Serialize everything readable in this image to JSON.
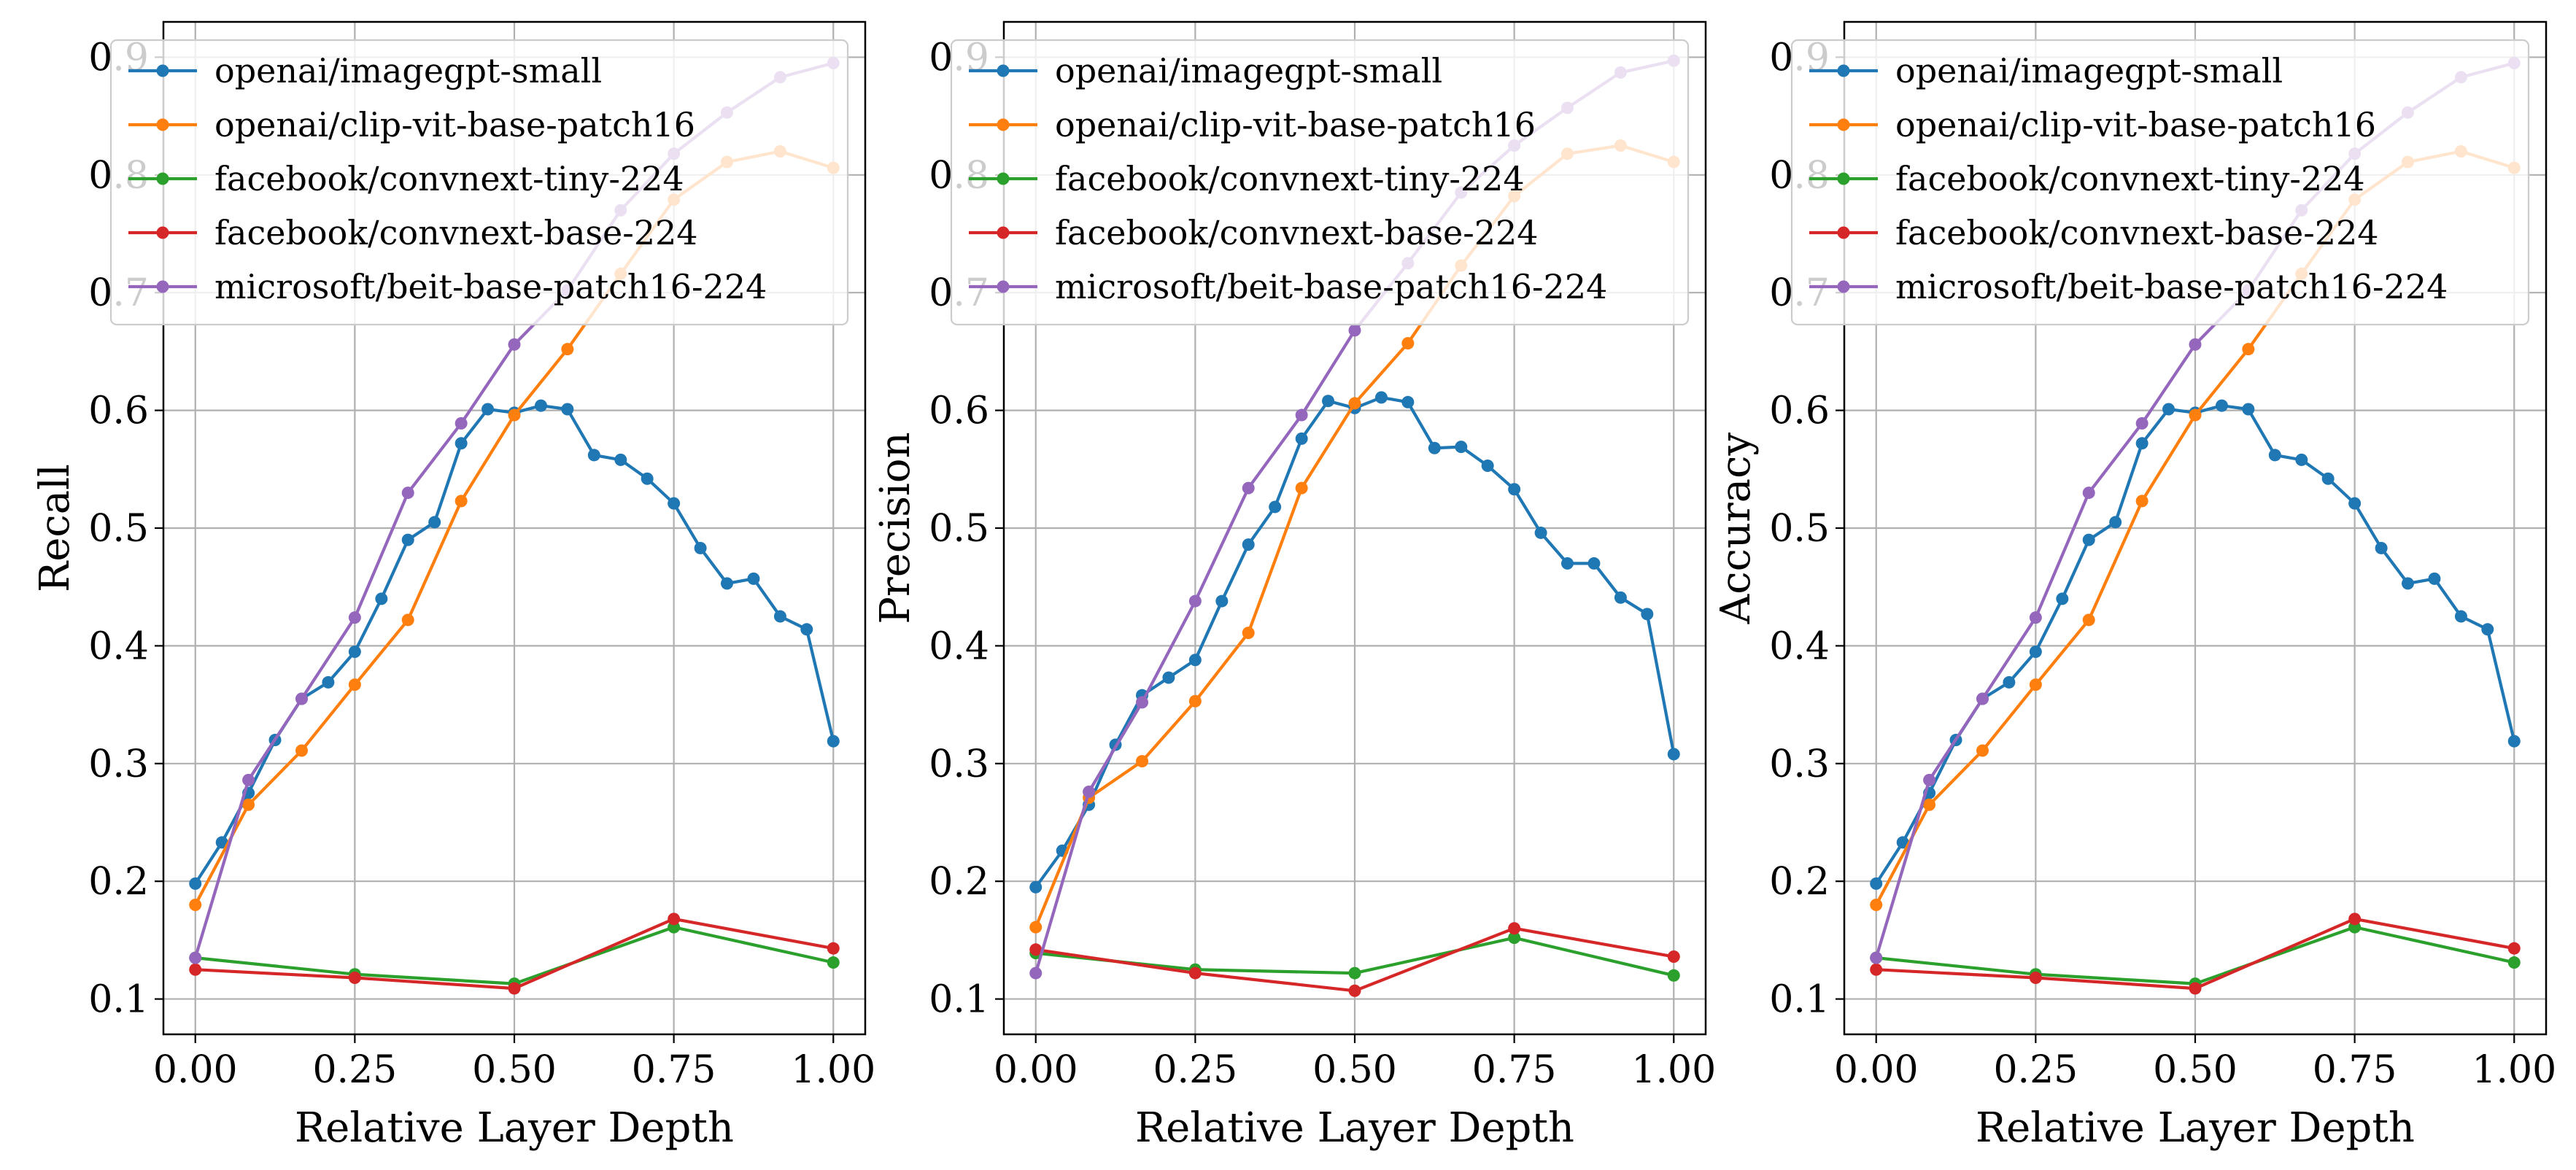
{
  "chart_data": [
    {
      "type": "line",
      "xlabel": "Relative Layer Depth",
      "ylabel": "Recall",
      "xlim": [
        -0.05,
        1.05
      ],
      "ylim": [
        0.07,
        0.93
      ],
      "xticks": [
        0.0,
        0.25,
        0.5,
        0.75,
        1.0
      ],
      "xtick_labels": [
        "0.00",
        "0.25",
        "0.50",
        "0.75",
        "1.00"
      ],
      "yticks": [
        0.1,
        0.2,
        0.3,
        0.4,
        0.5,
        0.6,
        0.7,
        0.8,
        0.9
      ],
      "ytick_labels": [
        "0.1",
        "0.2",
        "0.3",
        "0.4",
        "0.5",
        "0.6",
        "0.7",
        "0.8",
        "0.9"
      ],
      "grid": true,
      "legend_position": "upper-left",
      "series": [
        {
          "name": "openai/imagegpt-small",
          "color": "#1f77b4",
          "x": [
            0.0,
            0.0417,
            0.0833,
            0.125,
            0.1667,
            0.2083,
            0.25,
            0.2917,
            0.3333,
            0.375,
            0.4167,
            0.4583,
            0.5,
            0.5417,
            0.5833,
            0.625,
            0.6667,
            0.7083,
            0.75,
            0.7917,
            0.8333,
            0.875,
            0.9167,
            0.9583,
            1.0
          ],
          "y": [
            0.198,
            0.233,
            0.275,
            0.32,
            0.355,
            0.369,
            0.395,
            0.44,
            0.49,
            0.505,
            0.572,
            0.601,
            0.598,
            0.604,
            0.601,
            0.562,
            0.558,
            0.542,
            0.521,
            0.483,
            0.453,
            0.457,
            0.425,
            0.414,
            0.319
          ]
        },
        {
          "name": "openai/clip-vit-base-patch16",
          "color": "#ff7f0e",
          "x": [
            0.0,
            0.0833,
            0.1667,
            0.25,
            0.3333,
            0.4167,
            0.5,
            0.5833,
            0.6667,
            0.75,
            0.8333,
            0.9167,
            1.0
          ],
          "y": [
            0.18,
            0.265,
            0.311,
            0.367,
            0.422,
            0.523,
            0.596,
            0.652,
            0.716,
            0.779,
            0.811,
            0.82,
            0.806
          ]
        },
        {
          "name": "facebook/convnext-tiny-224",
          "color": "#2ca02c",
          "x": [
            0.0,
            0.25,
            0.5,
            0.75,
            1.0
          ],
          "y": [
            0.135,
            0.121,
            0.113,
            0.161,
            0.131
          ]
        },
        {
          "name": "facebook/convnext-base-224",
          "color": "#d62728",
          "x": [
            0.0,
            0.25,
            0.5,
            0.75,
            1.0
          ],
          "y": [
            0.125,
            0.118,
            0.109,
            0.168,
            0.143
          ]
        },
        {
          "name": "microsoft/beit-base-patch16-224",
          "color": "#9467bd",
          "x": [
            0.0,
            0.0833,
            0.1667,
            0.25,
            0.3333,
            0.4167,
            0.5,
            0.5833,
            0.6667,
            0.75,
            0.8333,
            0.9167,
            1.0
          ],
          "y": [
            0.135,
            0.286,
            0.355,
            0.424,
            0.53,
            0.589,
            0.656,
            0.702,
            0.77,
            0.818,
            0.853,
            0.883,
            0.895
          ]
        }
      ]
    },
    {
      "type": "line",
      "xlabel": "Relative Layer Depth",
      "ylabel": "Precision",
      "xlim": [
        -0.05,
        1.05
      ],
      "ylim": [
        0.07,
        0.93
      ],
      "xticks": [
        0.0,
        0.25,
        0.5,
        0.75,
        1.0
      ],
      "xtick_labels": [
        "0.00",
        "0.25",
        "0.50",
        "0.75",
        "1.00"
      ],
      "yticks": [
        0.1,
        0.2,
        0.3,
        0.4,
        0.5,
        0.6,
        0.7,
        0.8,
        0.9
      ],
      "ytick_labels": [
        "0.1",
        "0.2",
        "0.3",
        "0.4",
        "0.5",
        "0.6",
        "0.7",
        "0.8",
        "0.9"
      ],
      "grid": true,
      "legend_position": "upper-left",
      "series": [
        {
          "name": "openai/imagegpt-small",
          "color": "#1f77b4",
          "x": [
            0.0,
            0.0417,
            0.0833,
            0.125,
            0.1667,
            0.2083,
            0.25,
            0.2917,
            0.3333,
            0.375,
            0.4167,
            0.4583,
            0.5,
            0.5417,
            0.5833,
            0.625,
            0.6667,
            0.7083,
            0.75,
            0.7917,
            0.8333,
            0.875,
            0.9167,
            0.9583,
            1.0
          ],
          "y": [
            0.195,
            0.226,
            0.265,
            0.316,
            0.358,
            0.373,
            0.388,
            0.438,
            0.486,
            0.518,
            0.576,
            0.608,
            0.602,
            0.611,
            0.607,
            0.568,
            0.569,
            0.553,
            0.533,
            0.496,
            0.47,
            0.47,
            0.441,
            0.427,
            0.308
          ]
        },
        {
          "name": "openai/clip-vit-base-patch16",
          "color": "#ff7f0e",
          "x": [
            0.0,
            0.0833,
            0.1667,
            0.25,
            0.3333,
            0.4167,
            0.5,
            0.5833,
            0.6667,
            0.75,
            0.8333,
            0.9167,
            1.0
          ],
          "y": [
            0.161,
            0.271,
            0.302,
            0.353,
            0.411,
            0.534,
            0.606,
            0.657,
            0.723,
            0.782,
            0.818,
            0.825,
            0.811
          ]
        },
        {
          "name": "facebook/convnext-tiny-224",
          "color": "#2ca02c",
          "x": [
            0.0,
            0.25,
            0.5,
            0.75,
            1.0
          ],
          "y": [
            0.139,
            0.125,
            0.122,
            0.152,
            0.12
          ]
        },
        {
          "name": "facebook/convnext-base-224",
          "color": "#d62728",
          "x": [
            0.0,
            0.25,
            0.5,
            0.75,
            1.0
          ],
          "y": [
            0.142,
            0.122,
            0.107,
            0.16,
            0.136
          ]
        },
        {
          "name": "microsoft/beit-base-patch16-224",
          "color": "#9467bd",
          "x": [
            0.0,
            0.0833,
            0.1667,
            0.25,
            0.3333,
            0.4167,
            0.5,
            0.5833,
            0.6667,
            0.75,
            0.8333,
            0.9167,
            1.0
          ],
          "y": [
            0.122,
            0.276,
            0.352,
            0.438,
            0.534,
            0.596,
            0.668,
            0.725,
            0.785,
            0.825,
            0.857,
            0.887,
            0.897
          ]
        }
      ]
    },
    {
      "type": "line",
      "xlabel": "Relative Layer Depth",
      "ylabel": "Accuracy",
      "xlim": [
        -0.05,
        1.05
      ],
      "ylim": [
        0.07,
        0.93
      ],
      "xticks": [
        0.0,
        0.25,
        0.5,
        0.75,
        1.0
      ],
      "xtick_labels": [
        "0.00",
        "0.25",
        "0.50",
        "0.75",
        "1.00"
      ],
      "yticks": [
        0.1,
        0.2,
        0.3,
        0.4,
        0.5,
        0.6,
        0.7,
        0.8,
        0.9
      ],
      "ytick_labels": [
        "0.1",
        "0.2",
        "0.3",
        "0.4",
        "0.5",
        "0.6",
        "0.7",
        "0.8",
        "0.9"
      ],
      "grid": true,
      "legend_position": "upper-left",
      "series": [
        {
          "name": "openai/imagegpt-small",
          "color": "#1f77b4",
          "x": [
            0.0,
            0.0417,
            0.0833,
            0.125,
            0.1667,
            0.2083,
            0.25,
            0.2917,
            0.3333,
            0.375,
            0.4167,
            0.4583,
            0.5,
            0.5417,
            0.5833,
            0.625,
            0.6667,
            0.7083,
            0.75,
            0.7917,
            0.8333,
            0.875,
            0.9167,
            0.9583,
            1.0
          ],
          "y": [
            0.198,
            0.233,
            0.275,
            0.32,
            0.355,
            0.369,
            0.395,
            0.44,
            0.49,
            0.505,
            0.572,
            0.601,
            0.598,
            0.604,
            0.601,
            0.562,
            0.558,
            0.542,
            0.521,
            0.483,
            0.453,
            0.457,
            0.425,
            0.414,
            0.319
          ]
        },
        {
          "name": "openai/clip-vit-base-patch16",
          "color": "#ff7f0e",
          "x": [
            0.0,
            0.0833,
            0.1667,
            0.25,
            0.3333,
            0.4167,
            0.5,
            0.5833,
            0.6667,
            0.75,
            0.8333,
            0.9167,
            1.0
          ],
          "y": [
            0.18,
            0.265,
            0.311,
            0.367,
            0.422,
            0.523,
            0.596,
            0.652,
            0.716,
            0.779,
            0.811,
            0.82,
            0.806
          ]
        },
        {
          "name": "facebook/convnext-tiny-224",
          "color": "#2ca02c",
          "x": [
            0.0,
            0.25,
            0.5,
            0.75,
            1.0
          ],
          "y": [
            0.135,
            0.121,
            0.113,
            0.161,
            0.131
          ]
        },
        {
          "name": "facebook/convnext-base-224",
          "color": "#d62728",
          "x": [
            0.0,
            0.25,
            0.5,
            0.75,
            1.0
          ],
          "y": [
            0.125,
            0.118,
            0.109,
            0.168,
            0.143
          ]
        },
        {
          "name": "microsoft/beit-base-patch16-224",
          "color": "#9467bd",
          "x": [
            0.0,
            0.0833,
            0.1667,
            0.25,
            0.3333,
            0.4167,
            0.5,
            0.5833,
            0.6667,
            0.75,
            0.8333,
            0.9167,
            1.0
          ],
          "y": [
            0.135,
            0.286,
            0.355,
            0.424,
            0.53,
            0.589,
            0.656,
            0.702,
            0.77,
            0.818,
            0.853,
            0.883,
            0.895
          ]
        }
      ]
    }
  ]
}
